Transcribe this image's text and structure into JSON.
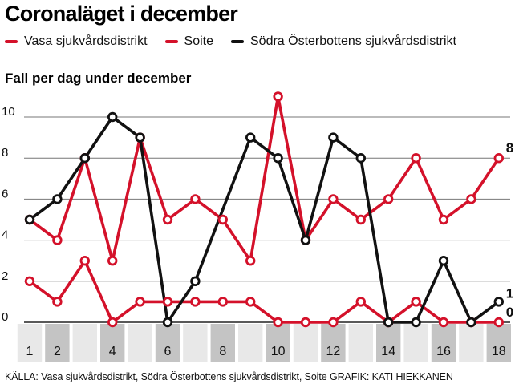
{
  "title": "Coronaläget i december",
  "subtitle": "Fall per dag under december",
  "source": "KÄLLA: Vasa sjukvårdsdistrikt, Södra Österbottens sjukvårdsdistrikt, Soite GRAFIK: KATI HIEKKANEN",
  "legend": [
    {
      "label": "Vasa sjukvårdsdistrikt",
      "color": "#d4112a"
    },
    {
      "label": "Soite",
      "color": "#d4112a"
    },
    {
      "label": "Södra Österbottens sjukvårdsdistrikt",
      "color": "#111111"
    }
  ],
  "colors": {
    "red": "#d4112a",
    "black": "#111111",
    "band_light": "#e8e8e8",
    "band_dark": "#c4c4c4"
  },
  "chart_data": {
    "type": "line",
    "x": [
      1,
      2,
      3,
      4,
      5,
      6,
      7,
      8,
      9,
      10,
      11,
      12,
      13,
      14,
      15,
      16,
      17,
      18
    ],
    "x_tick_labels": [
      "1",
      "2",
      "4",
      "6",
      "8",
      "10",
      "12",
      "14",
      "16",
      "18"
    ],
    "x_tick_values": [
      1,
      2,
      4,
      6,
      8,
      10,
      12,
      14,
      16,
      18
    ],
    "ylim": [
      0,
      10
    ],
    "y_ticks": [
      0,
      2,
      4,
      6,
      8,
      10
    ],
    "grid": "horizontal",
    "series": [
      {
        "name": "Vasa sjukvårdsdistrikt",
        "color": "#d4112a",
        "values": [
          2,
          1,
          3,
          0,
          1,
          1,
          1,
          1,
          1,
          0,
          0,
          0,
          1,
          0,
          1,
          0,
          0,
          0
        ],
        "end_label": "0"
      },
      {
        "name": "Soite",
        "color": "#d4112a",
        "values": [
          5,
          4,
          8,
          3,
          9,
          5,
          6,
          5,
          3,
          11,
          4,
          6,
          5,
          6,
          8,
          5,
          6,
          8
        ],
        "end_label": "8"
      },
      {
        "name": "Södra Österbottens sjukvårdsdistrikt",
        "color": "#111111",
        "values": [
          5,
          6,
          8,
          10,
          9,
          0,
          2,
          null,
          9,
          8,
          4,
          9,
          8,
          0,
          0,
          3,
          0,
          1
        ],
        "end_label": "1"
      }
    ]
  }
}
